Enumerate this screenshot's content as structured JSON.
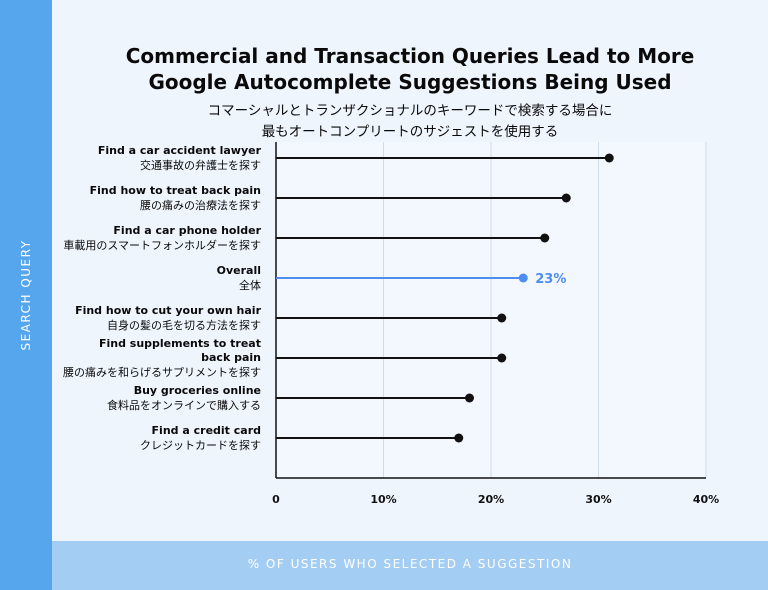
{
  "header": {
    "title_line1": "Commercial and Transaction Queries Lead to More",
    "title_line2": "Google Autocomplete Suggestions Being Used",
    "subtitle_line1": "コマーシャルとトランザクショナルのキーワードで検索する場合に",
    "subtitle_line2": "最もオートコンプリートのサジェストを使用する"
  },
  "side_label": "SEARCH QUERY",
  "bottom_label": "% OF USERS WHO SELECTED A SUGGESTION",
  "colors": {
    "band": "#56a6ee",
    "bottom_band": "#a4cdf4",
    "background": "#eef5fd",
    "highlight": "#4d8ef0",
    "default": "#111111"
  },
  "chart_data": {
    "type": "lollipop-bar",
    "orientation": "horizontal",
    "categories": [
      {
        "en": "Find a car accident lawyer",
        "ja": "交通事故の弁護士を探す"
      },
      {
        "en": "Find how to treat back pain",
        "ja": "腰の痛みの治療法を探す"
      },
      {
        "en": "Find a car phone holder",
        "ja": "車載用のスマートフォンホルダーを探す"
      },
      {
        "en": "Overall",
        "ja": "全体"
      },
      {
        "en": "Find how to cut your own hair",
        "ja": "自身の髪の毛を切る方法を探す"
      },
      {
        "en": "Find supplements to treat back pain",
        "ja": "腰の痛みを和らげるサプリメントを探す"
      },
      {
        "en": "Buy groceries online",
        "ja": "食料品をオンラインで購入する"
      },
      {
        "en": "Find a credit card",
        "ja": "クレジットカードを探す"
      }
    ],
    "values": [
      31,
      27,
      25,
      23,
      21,
      21,
      18,
      17
    ],
    "highlight_index": 3,
    "data_labels": {
      "3": "23%"
    },
    "xlim": [
      0,
      40
    ],
    "xticks": [
      "0",
      "10%",
      "20%",
      "30%",
      "40%"
    ],
    "xlabel": "% OF USERS WHO SELECTED A SUGGESTION",
    "ylabel": "SEARCH QUERY",
    "grid": "vertical"
  }
}
